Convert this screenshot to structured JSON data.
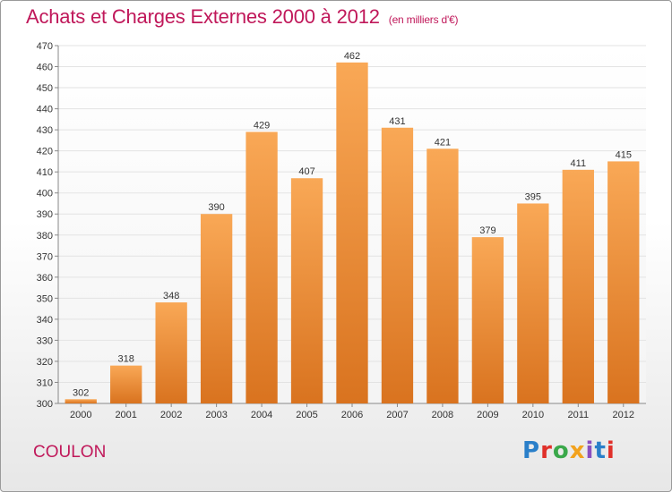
{
  "header": {
    "title": "Achats et Charges Externes 2000 à 2012",
    "unit": "(en milliers d'€)"
  },
  "footer": {
    "commune": "COULON",
    "logo": "Proxiti"
  },
  "colors": {
    "title": "#c0185a",
    "bar_top": "#f9a856",
    "bar_bottom": "#d9731f",
    "grid": "#e3e3e3"
  },
  "chart_data": {
    "type": "bar",
    "title": "Achats et Charges Externes 2000 à 2012",
    "subtitle": "(en milliers d'€)",
    "categories": [
      "2000",
      "2001",
      "2002",
      "2003",
      "2004",
      "2005",
      "2006",
      "2007",
      "2008",
      "2009",
      "2010",
      "2011",
      "2012"
    ],
    "values": [
      302,
      318,
      348,
      390,
      429,
      407,
      462,
      431,
      421,
      379,
      395,
      411,
      415
    ],
    "ylim": [
      300,
      470
    ],
    "yticks": [
      300,
      310,
      320,
      330,
      340,
      350,
      360,
      370,
      380,
      390,
      400,
      410,
      420,
      430,
      440,
      450,
      460,
      470
    ],
    "grid": true,
    "legend": "none"
  }
}
